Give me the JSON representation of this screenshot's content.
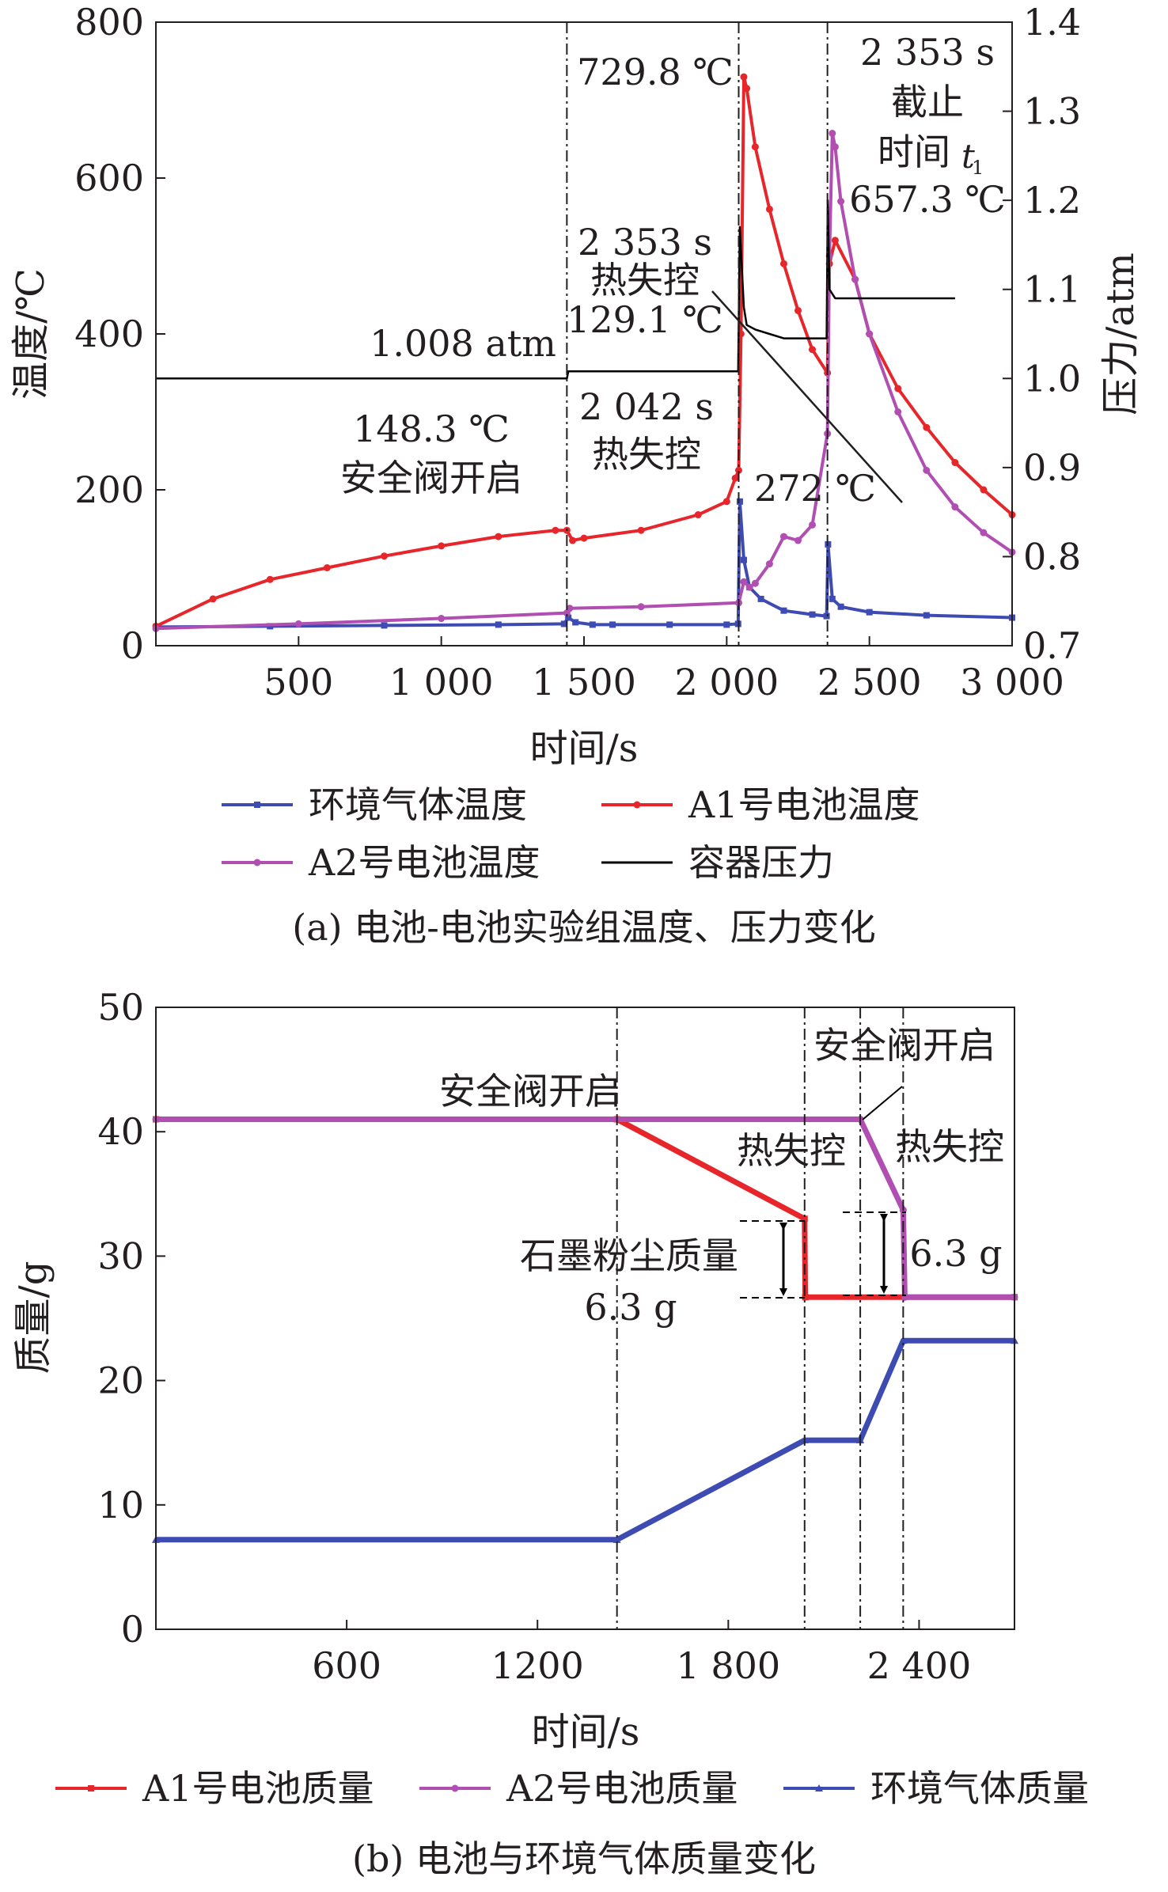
{
  "chart_data": [
    {
      "type": "line",
      "caption": "(a) 电池-电池实验组温度、压力变化",
      "xlabel": "时间/s",
      "ylabel": "温度/℃",
      "y2label": "压力/atm",
      "xlim": [
        0,
        3000
      ],
      "ylim": [
        0,
        800
      ],
      "y2lim": [
        0.7,
        1.4
      ],
      "xticks": [
        500,
        1000,
        1500,
        2000,
        2500,
        3000
      ],
      "xticklabels": [
        "500",
        "1 000",
        "1 500",
        "2 000",
        "2 500",
        "3 000"
      ],
      "yticks": [
        0,
        200,
        400,
        600,
        800
      ],
      "yticklabels": [
        "0",
        "200",
        "400",
        "600",
        "800"
      ],
      "y2ticks": [
        0.7,
        0.8,
        0.9,
        1.0,
        1.1,
        1.2,
        1.3,
        1.4
      ],
      "y2ticklabels": [
        "0.7",
        "0.8",
        "0.9",
        "1.0",
        "1.1",
        "1.2",
        "1.3",
        "1.4"
      ],
      "grid": false,
      "legend_position": "bottom",
      "vlines": [
        1440,
        2042,
        2353
      ],
      "series": [
        {
          "name": "环境气体温度",
          "axis": "left",
          "color": "#3d4bb3",
          "marker": "square",
          "x": [
            0,
            400,
            800,
            1200,
            1430,
            1445,
            1470,
            1530,
            1600,
            1800,
            2000,
            2040,
            2046,
            2060,
            2080,
            2120,
            2200,
            2300,
            2350,
            2355,
            2370,
            2400,
            2500,
            2700,
            3000
          ],
          "y": [
            24,
            25,
            26,
            27,
            28,
            36,
            30,
            27,
            27,
            27,
            27,
            28,
            185,
            110,
            75,
            60,
            45,
            40,
            38,
            130,
            60,
            50,
            43,
            39,
            36
          ]
        },
        {
          "name": "A1号电池温度",
          "axis": "left",
          "color": "#e6262b",
          "marker": "circle",
          "x": [
            0,
            200,
            400,
            600,
            800,
            1000,
            1200,
            1400,
            1440,
            1460,
            1500,
            1700,
            1900,
            2000,
            2030,
            2042,
            2050,
            2060,
            2070,
            2100,
            2150,
            2200,
            2250,
            2300,
            2353,
            2360,
            2380,
            2450,
            2500,
            2600,
            2700,
            2800,
            2900,
            3000
          ],
          "y": [
            25,
            60,
            85,
            100,
            115,
            128,
            140,
            148,
            148,
            135,
            138,
            148,
            168,
            185,
            215,
            225,
            400,
            729.8,
            715,
            640,
            560,
            490,
            430,
            380,
            350,
            490,
            520,
            470,
            400,
            330,
            280,
            235,
            200,
            168
          ]
        },
        {
          "name": "A2号电池温度",
          "axis": "left",
          "color": "#b04eb2",
          "marker": "circle",
          "x": [
            0,
            500,
            1000,
            1440,
            1450,
            1700,
            2042,
            2060,
            2080,
            2100,
            2150,
            2200,
            2250,
            2300,
            2353,
            2360,
            2370,
            2380,
            2400,
            2450,
            2500,
            2600,
            2700,
            2800,
            2900,
            3000
          ],
          "y": [
            22,
            28,
            35,
            42,
            48,
            50,
            55,
            82,
            75,
            80,
            105,
            140,
            135,
            155,
            272,
            500,
            657.3,
            640,
            570,
            470,
            400,
            300,
            225,
            178,
            145,
            120
          ]
        },
        {
          "name": "容器压力",
          "axis": "right",
          "color": "#000000",
          "marker": "none",
          "x": [
            0,
            1440,
            1445,
            2040,
            2046,
            2060,
            2070,
            2100,
            2150,
            2200,
            2350,
            2354,
            2360,
            2380,
            2450,
            2800
          ],
          "y": [
            1.0,
            1.0,
            1.008,
            1.008,
            1.17,
            1.08,
            1.06,
            1.055,
            1.05,
            1.045,
            1.045,
            1.2,
            1.1,
            1.09,
            1.09,
            1.09
          ]
        }
      ],
      "annotations": [
        {
          "lines": [
            "729.8 ℃"
          ]
        },
        {
          "lines": [
            "2 353 s",
            "截止",
            "时间",
            "657.3 ℃"
          ]
        },
        {
          "lines": [
            "2 353 s",
            "热失控",
            "129.1 ℃"
          ]
        },
        {
          "lines": [
            "1.008 atm"
          ]
        },
        {
          "lines": [
            "148.3 ℃",
            "安全阀开启"
          ]
        },
        {
          "lines": [
            "2 042 s",
            "热失控"
          ]
        },
        {
          "lines": [
            "272 ℃"
          ]
        }
      ]
    },
    {
      "type": "line",
      "caption": "(b) 电池与环境气体质量变化",
      "xlabel": "时间/s",
      "ylabel": "质量/g",
      "xlim": [
        0,
        2700
      ],
      "ylim": [
        0,
        50
      ],
      "xticks": [
        600,
        1200,
        1800,
        2400
      ],
      "xticklabels": [
        "600",
        "1200",
        "1 800",
        "2 400"
      ],
      "yticks": [
        0,
        10,
        20,
        30,
        40,
        50
      ],
      "yticklabels": [
        "0",
        "10",
        "20",
        "30",
        "40",
        "50"
      ],
      "grid": false,
      "legend_position": "bottom",
      "vlines": [
        1450,
        2040,
        2215,
        2350
      ],
      "series": [
        {
          "name": "A1号电池质量",
          "color": "#e6262b",
          "marker": "square",
          "x": [
            0,
            1450,
            2040,
            2042,
            2700
          ],
          "y": [
            41,
            41,
            33,
            26.7,
            26.7
          ]
        },
        {
          "name": "A2号电池质量",
          "color": "#b04eb2",
          "marker": "circle",
          "x": [
            0,
            2215,
            2350,
            2355,
            2700
          ],
          "y": [
            41,
            41,
            33.7,
            26.7,
            26.7
          ]
        },
        {
          "name": "环境气体质量",
          "color": "#3d4bb3",
          "marker": "triangle",
          "x": [
            0,
            1450,
            2040,
            2215,
            2350,
            2700
          ],
          "y": [
            7.2,
            7.2,
            15.2,
            15.2,
            23.2,
            23.2
          ]
        }
      ],
      "annotations": [
        {
          "lines": [
            "安全阀开启"
          ]
        },
        {
          "lines": [
            "安全阀开启"
          ]
        },
        {
          "lines": [
            "热失控"
          ]
        },
        {
          "lines": [
            "热失控"
          ]
        },
        {
          "lines": [
            "石墨粉尘质量",
            "6.3 g"
          ]
        },
        {
          "lines": [
            "6.3 g"
          ]
        }
      ]
    }
  ]
}
